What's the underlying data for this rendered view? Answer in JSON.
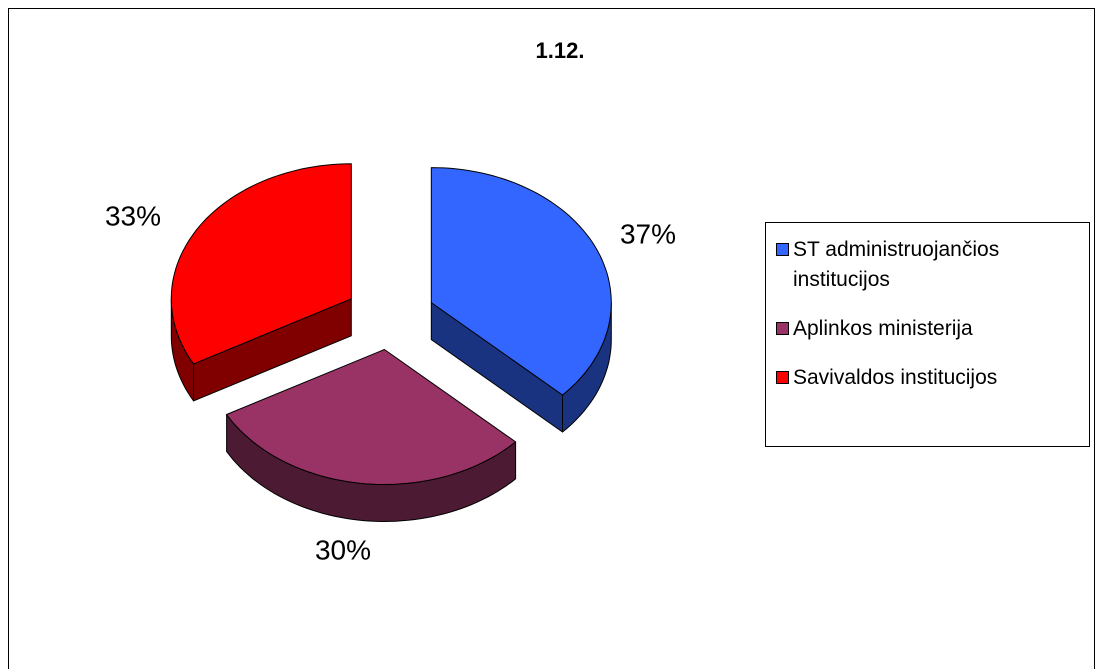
{
  "chart_data": {
    "type": "pie3d",
    "title": "1.12.",
    "categories": [
      "ST administruojančios institucijos",
      "Aplinkos ministerija",
      "Savivaldos institucijos"
    ],
    "values": [
      37,
      30,
      33
    ],
    "value_labels": [
      "37%",
      "30%",
      "33%"
    ],
    "colors": [
      "#3366ff",
      "#993366",
      "#ff0000"
    ],
    "legend": "right"
  }
}
